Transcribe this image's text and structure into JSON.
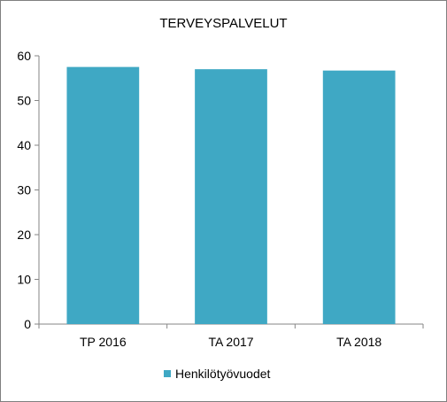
{
  "chart_data": {
    "type": "bar",
    "title": "TERVEYSPALVELUT",
    "categories": [
      "TP 2016",
      "TA 2017",
      "TA 2018"
    ],
    "series": [
      {
        "name": "Henkilötyövuodet",
        "values": [
          57.5,
          57.0,
          56.7
        ],
        "color": "#3fa8c4"
      }
    ],
    "ylim": [
      0,
      60
    ],
    "yticks": [
      0,
      10,
      20,
      30,
      40,
      50,
      60
    ],
    "grid": false,
    "legend": "bottom"
  }
}
